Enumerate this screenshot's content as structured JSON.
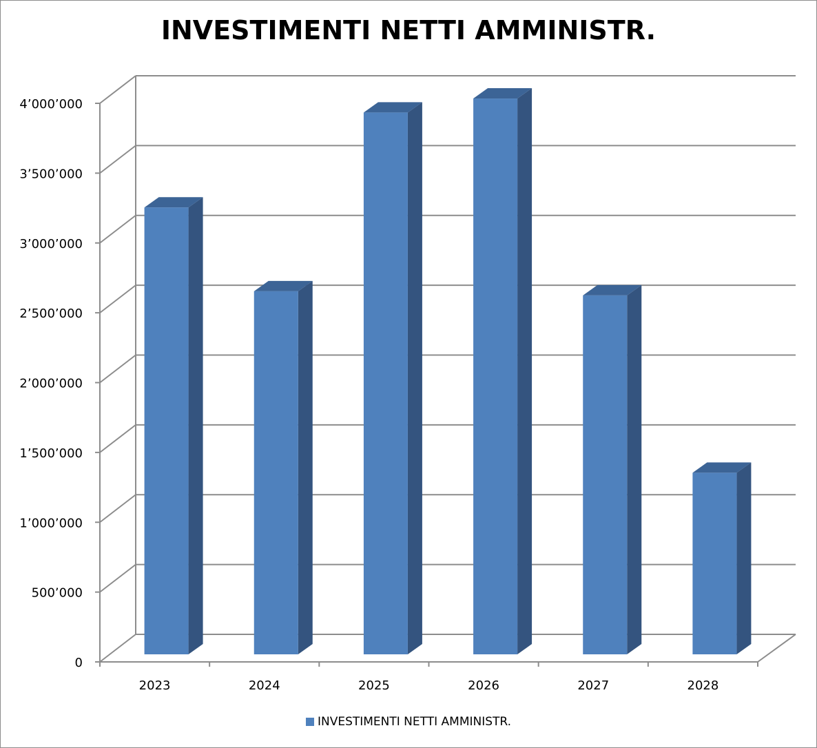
{
  "chart_data": {
    "type": "bar",
    "title": "INVESTIMENTI NETTI AMMINISTR.",
    "categories": [
      "2023",
      "2024",
      "2025",
      "2026",
      "2027",
      "2028"
    ],
    "series": [
      {
        "name": "INVESTIMENTI NETTI AMMINISTR.",
        "values": [
          3200000,
          2600000,
          3880000,
          3980000,
          2570000,
          1300000
        ]
      }
    ],
    "ylim": [
      0,
      4000000
    ],
    "yticks": [
      0,
      500000,
      1000000,
      1500000,
      2000000,
      2500000,
      3000000,
      3500000,
      4000000
    ],
    "ytick_labels": [
      "0",
      "500’000",
      "1’000’000",
      "1’500’000",
      "2’000’000",
      "2’500’000",
      "3’000’000",
      "3’500’000",
      "4’000’000"
    ],
    "xlabel": "",
    "ylabel": "",
    "grid": true,
    "style": "3d-column",
    "legend_position": "bottom",
    "colors": {
      "bar_front": "#4f81bd",
      "bar_side": "#34547f",
      "bar_top": "#3c6496",
      "grid": "#8c8c8c"
    }
  }
}
